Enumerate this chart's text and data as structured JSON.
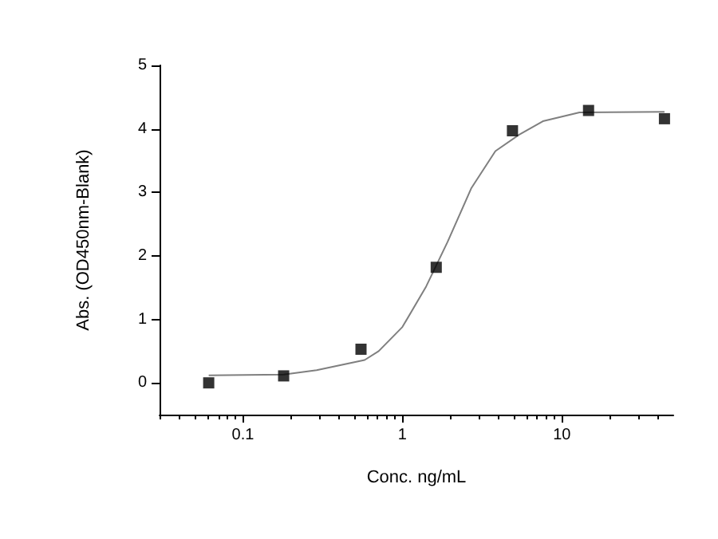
{
  "chart_data": {
    "type": "scatter",
    "xlabel": "Conc. ng/mL",
    "ylabel": "Abs. (OD450nm-Blank)",
    "log": "x",
    "xlim": [
      0.03,
      50
    ],
    "xticks": [
      0.1,
      1,
      10
    ],
    "ylim": [
      -0.5,
      5
    ],
    "yticks": [
      0,
      1,
      2,
      3,
      4,
      5
    ],
    "grid": false,
    "series": [
      {
        "color": "#000000",
        "marker": "square",
        "x": [
          0.061,
          0.18,
          0.55,
          1.63,
          4.9,
          14.7,
          44
        ],
        "values": [
          0.0,
          0.11,
          0.53,
          1.82,
          3.97,
          4.29,
          4.16
        ]
      },
      {
        "type": "line",
        "color": "#7f7f7f",
        "marker": "none",
        "x": [
          0.061,
          0.18,
          0.29,
          0.58,
          0.71,
          1.0,
          1.41,
          1.92,
          2.71,
          3.83,
          5.4,
          7.6,
          12.9,
          44
        ],
        "values": [
          0.12,
          0.13,
          0.2,
          0.36,
          0.5,
          0.88,
          1.52,
          2.22,
          3.07,
          3.65,
          3.91,
          4.12,
          4.26,
          4.27
        ]
      }
    ]
  }
}
